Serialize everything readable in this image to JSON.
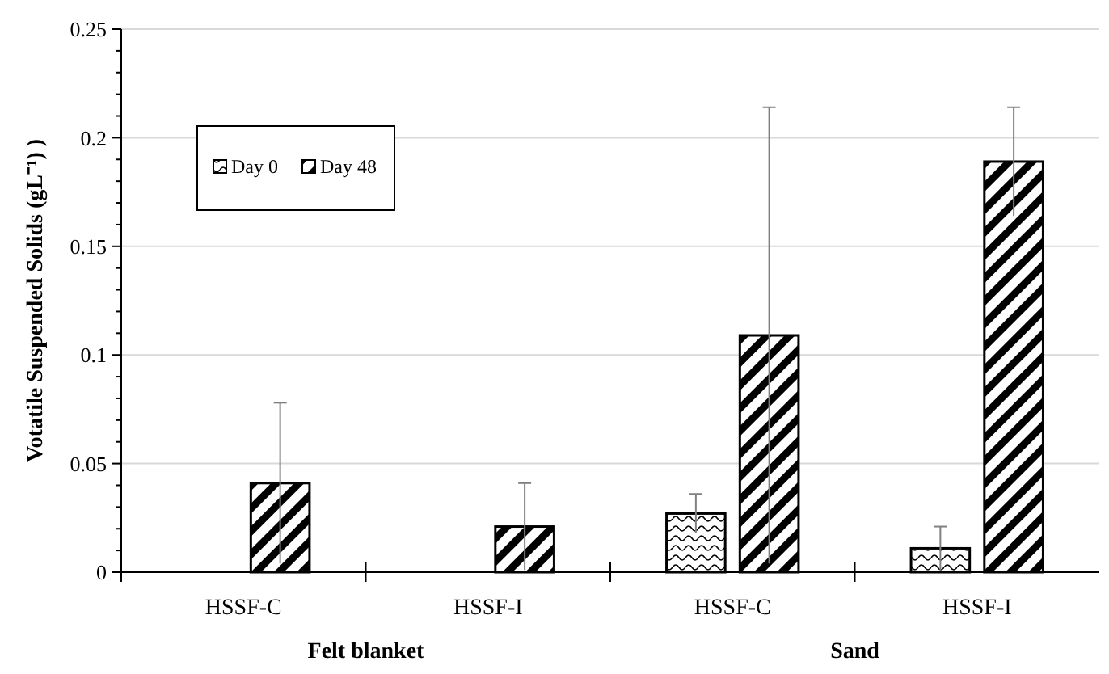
{
  "chart_data": {
    "type": "bar",
    "ylabel": "Votatile Suspended Solids (gL⁻¹) )",
    "categories": [
      "HSSF-C",
      "HSSF-I",
      "HSSF-C",
      "HSSF-I"
    ],
    "series": [
      {
        "name": "Day 0",
        "color": "#000000",
        "values": [
          null,
          null,
          0.027,
          0.011
        ],
        "errors": [
          null,
          null,
          0.009,
          0.01
        ]
      },
      {
        "name": "Day 48",
        "color": "#000000",
        "values": [
          0.041,
          0.021,
          0.109,
          0.189
        ],
        "errors": [
          0.037,
          0.02,
          0.105,
          0.025
        ]
      }
    ],
    "annotations": [
      "Felt blanket",
      "Sand"
    ],
    "ylim": [
      0,
      0.25
    ],
    "yticks": [
      0,
      {
        "value": 0.01,
        "label": null
      },
      {
        "value": 0.02,
        "label": null
      },
      {
        "value": 0.03,
        "label": null
      },
      {
        "value": 0.04,
        "label": null
      },
      0.05,
      {
        "value": 0.06,
        "label": null
      },
      {
        "value": 0.07,
        "label": null
      },
      {
        "value": 0.08,
        "label": null
      },
      {
        "value": 0.09,
        "label": null
      },
      0.1,
      {
        "value": 0.11,
        "label": null
      },
      {
        "value": 0.12,
        "label": null
      },
      {
        "value": 0.13,
        "label": null
      },
      {
        "value": 0.14,
        "label": null
      },
      0.15,
      {
        "value": 0.16,
        "label": null
      },
      {
        "value": 0.17,
        "label": null
      },
      {
        "value": 0.18,
        "label": null
      },
      {
        "value": 0.19,
        "label": null
      },
      0.2,
      {
        "value": 0.21,
        "label": null
      },
      {
        "value": 0.22,
        "label": null
      },
      {
        "value": 0.23,
        "label": null
      },
      {
        "value": 0.24,
        "label": null
      },
      0.25
    ],
    "grid": "y",
    "legend": "top left"
  }
}
